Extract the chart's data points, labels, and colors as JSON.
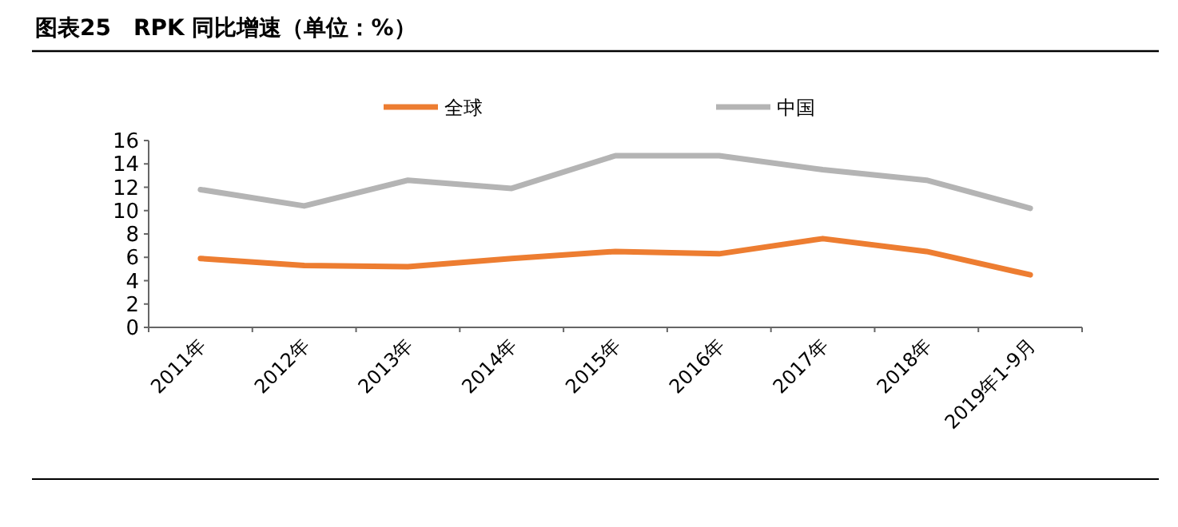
{
  "chart_data": {
    "type": "line",
    "title": "图表25　RPK 同比增速（单位：%）",
    "categories": [
      "2011年",
      "2012年",
      "2013年",
      "2014年",
      "2015年",
      "2016年",
      "2017年",
      "2018年",
      "2019年1-9月"
    ],
    "series": [
      {
        "name": "全球",
        "color": "#ed7d31",
        "values": [
          5.9,
          5.3,
          5.2,
          5.9,
          6.5,
          6.3,
          7.6,
          6.5,
          4.5
        ]
      },
      {
        "name": "中国",
        "color": "#b4b4b4",
        "values": [
          11.8,
          10.4,
          12.6,
          11.9,
          14.7,
          14.7,
          13.5,
          12.6,
          10.2
        ]
      }
    ],
    "ylim": [
      0,
      16
    ],
    "yticks": [
      0,
      2,
      4,
      6,
      8,
      10,
      12,
      14,
      16
    ],
    "legend": "top",
    "grid": false,
    "marker": "none",
    "line_style": "solid"
  }
}
